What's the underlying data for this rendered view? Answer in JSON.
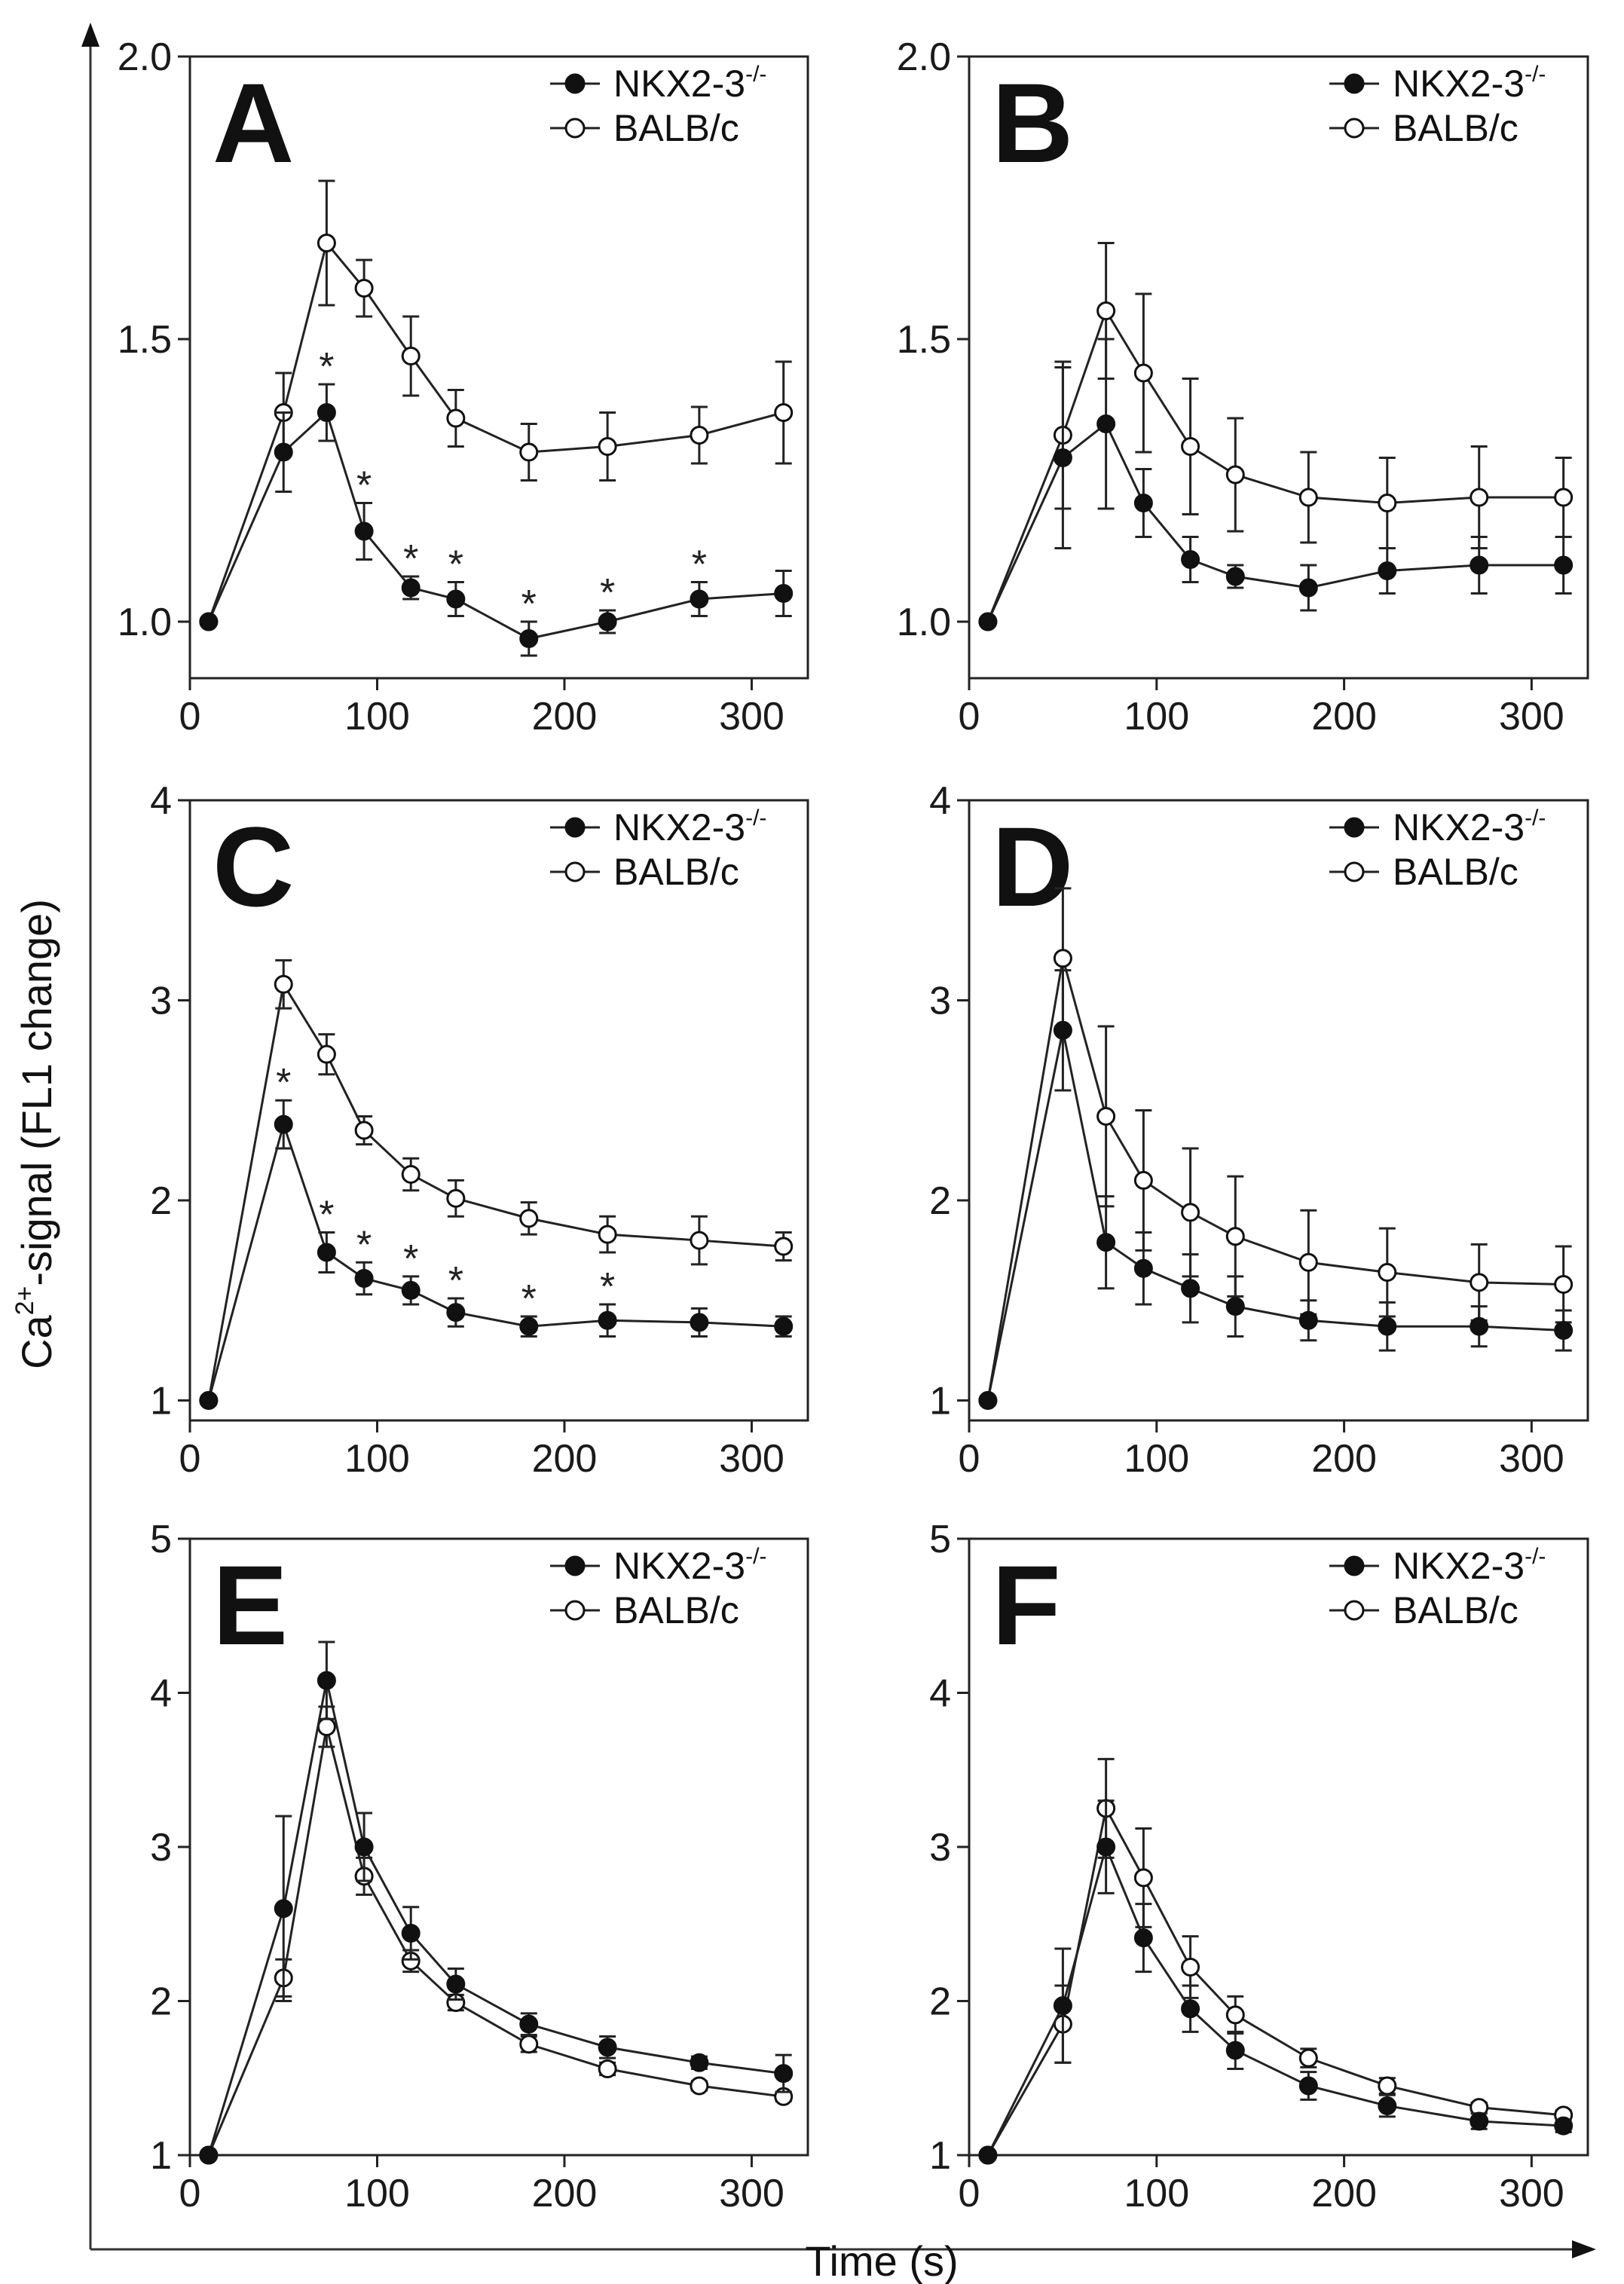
{
  "figure": {
    "ylabel_main": "Ca",
    "ylabel_sup": "2+",
    "ylabel_rest": "-signal (FL1 change)",
    "xlabel": "Time (s)"
  },
  "legend": {
    "series1_main": "NKX2-3",
    "series1_sup": "-/-",
    "series2": "BALB/c"
  },
  "chart_data": [
    {
      "type": "line",
      "panel": "A",
      "x": [
        10,
        50,
        73,
        93,
        118,
        142,
        181,
        223,
        272,
        317
      ],
      "xlim": [
        0,
        330
      ],
      "xticks": [
        0,
        100,
        200,
        300
      ],
      "ylim": [
        0.9,
        2.0
      ],
      "yticks": [
        1.0,
        1.5,
        2.0
      ],
      "ytick_labels": [
        "1.0",
        "1.5",
        "2.0"
      ],
      "series": [
        {
          "name": "NKX2-3-/-",
          "marker": "filled",
          "values": [
            1.0,
            1.3,
            1.37,
            1.16,
            1.06,
            1.04,
            0.97,
            1.0,
            1.04,
            1.05
          ],
          "errors": [
            0,
            0.07,
            0.05,
            0.05,
            0.02,
            0.03,
            0.03,
            0.02,
            0.03,
            0.04
          ]
        },
        {
          "name": "BALB/c",
          "marker": "open",
          "values": [
            1.0,
            1.37,
            1.67,
            1.59,
            1.47,
            1.36,
            1.3,
            1.31,
            1.33,
            1.37
          ],
          "errors": [
            0,
            0.07,
            0.11,
            0.05,
            0.07,
            0.05,
            0.05,
            0.06,
            0.05,
            0.09
          ]
        }
      ],
      "significance_marker": "*",
      "significant_indices": [
        2,
        3,
        4,
        5,
        6,
        7,
        8
      ]
    },
    {
      "type": "line",
      "panel": "B",
      "x": [
        10,
        50,
        73,
        93,
        118,
        142,
        181,
        223,
        272,
        317
      ],
      "xlim": [
        0,
        330
      ],
      "xticks": [
        0,
        100,
        200,
        300
      ],
      "ylim": [
        0.9,
        2.0
      ],
      "yticks": [
        1.0,
        1.5,
        2.0
      ],
      "ytick_labels": [
        "1.0",
        "1.5",
        "2.0"
      ],
      "series": [
        {
          "name": "NKX2-3-/-",
          "marker": "filled",
          "values": [
            1.0,
            1.29,
            1.35,
            1.21,
            1.11,
            1.08,
            1.06,
            1.09,
            1.1,
            1.1
          ],
          "errors": [
            0,
            0.16,
            0.15,
            0.06,
            0.04,
            0.02,
            0.04,
            0.04,
            0.05,
            0.05
          ]
        },
        {
          "name": "BALB/c",
          "marker": "open",
          "values": [
            1.0,
            1.33,
            1.55,
            1.44,
            1.31,
            1.26,
            1.22,
            1.21,
            1.22,
            1.22
          ],
          "errors": [
            0,
            0.13,
            0.12,
            0.14,
            0.12,
            0.1,
            0.08,
            0.08,
            0.09,
            0.07
          ]
        }
      ],
      "significance_marker": "*",
      "significant_indices": []
    },
    {
      "type": "line",
      "panel": "C",
      "x": [
        10,
        50,
        73,
        93,
        118,
        142,
        181,
        223,
        272,
        317
      ],
      "xlim": [
        0,
        330
      ],
      "xticks": [
        0,
        100,
        200,
        300
      ],
      "ylim": [
        0.9,
        4.0
      ],
      "yticks": [
        1,
        2,
        3,
        4
      ],
      "ytick_labels": [
        "1",
        "2",
        "3",
        "4"
      ],
      "series": [
        {
          "name": "NKX2-3-/-",
          "marker": "filled",
          "values": [
            1.0,
            2.38,
            1.74,
            1.61,
            1.55,
            1.44,
            1.37,
            1.4,
            1.39,
            1.37
          ],
          "errors": [
            0,
            0.12,
            0.1,
            0.08,
            0.07,
            0.07,
            0.05,
            0.08,
            0.07,
            0.05
          ]
        },
        {
          "name": "BALB/c",
          "marker": "open",
          "values": [
            1.0,
            3.08,
            2.73,
            2.35,
            2.13,
            2.01,
            1.91,
            1.83,
            1.8,
            1.77
          ],
          "errors": [
            0,
            0.12,
            0.1,
            0.07,
            0.08,
            0.09,
            0.08,
            0.09,
            0.12,
            0.07
          ]
        }
      ],
      "significance_marker": "*",
      "significant_indices": [
        1,
        2,
        3,
        4,
        5,
        6,
        7
      ]
    },
    {
      "type": "line",
      "panel": "D",
      "x": [
        10,
        50,
        73,
        93,
        118,
        142,
        181,
        223,
        272,
        317
      ],
      "xlim": [
        0,
        330
      ],
      "xticks": [
        0,
        100,
        200,
        300
      ],
      "ylim": [
        0.9,
        4.0
      ],
      "yticks": [
        1,
        2,
        3,
        4
      ],
      "ytick_labels": [
        "1",
        "2",
        "3",
        "4"
      ],
      "series": [
        {
          "name": "NKX2-3-/-",
          "marker": "filled",
          "values": [
            1.0,
            2.85,
            1.79,
            1.66,
            1.56,
            1.47,
            1.4,
            1.37,
            1.37,
            1.35
          ],
          "errors": [
            0,
            0.3,
            0.23,
            0.18,
            0.17,
            0.15,
            0.1,
            0.12,
            0.1,
            0.1
          ]
        },
        {
          "name": "BALB/c",
          "marker": "open",
          "values": [
            1.0,
            3.21,
            2.42,
            2.1,
            1.94,
            1.82,
            1.69,
            1.64,
            1.59,
            1.58
          ],
          "errors": [
            0,
            0.35,
            0.45,
            0.35,
            0.32,
            0.3,
            0.26,
            0.22,
            0.19,
            0.19
          ]
        }
      ],
      "significance_marker": "*",
      "significant_indices": []
    },
    {
      "type": "line",
      "panel": "E",
      "x": [
        10,
        50,
        73,
        93,
        118,
        142,
        181,
        223,
        272,
        317
      ],
      "xlim": [
        0,
        330
      ],
      "xticks": [
        0,
        100,
        200,
        300
      ],
      "ylim": [
        1.0,
        5.0
      ],
      "yticks": [
        1,
        2,
        3,
        4,
        5
      ],
      "ytick_labels": [
        "1",
        "2",
        "3",
        "4",
        "5"
      ],
      "series": [
        {
          "name": "NKX2-3-/-",
          "marker": "filled",
          "values": [
            1.0,
            2.6,
            4.08,
            3.0,
            2.44,
            2.11,
            1.85,
            1.7,
            1.6,
            1.53
          ],
          "errors": [
            0,
            0.6,
            0.25,
            0.22,
            0.17,
            0.1,
            0.07,
            0.07,
            0.04,
            0.12
          ]
        },
        {
          "name": "BALB/c",
          "marker": "open",
          "values": [
            1.0,
            2.15,
            3.78,
            2.81,
            2.26,
            1.99,
            1.72,
            1.56,
            1.45,
            1.38
          ],
          "errors": [
            0,
            0.12,
            0.13,
            0.12,
            0.07,
            0.05,
            0.05,
            0.04,
            0.03,
            0.03
          ]
        }
      ],
      "significance_marker": "*",
      "significant_indices": []
    },
    {
      "type": "line",
      "panel": "F",
      "x": [
        10,
        50,
        73,
        93,
        118,
        142,
        181,
        223,
        272,
        317
      ],
      "xlim": [
        0,
        330
      ],
      "xticks": [
        0,
        100,
        200,
        300
      ],
      "ylim": [
        1.0,
        5.0
      ],
      "yticks": [
        1,
        2,
        3,
        4,
        5
      ],
      "ytick_labels": [
        "1",
        "2",
        "3",
        "4",
        "5"
      ],
      "series": [
        {
          "name": "NKX2-3-/-",
          "marker": "filled",
          "values": [
            1.0,
            1.97,
            3.0,
            2.41,
            1.95,
            1.68,
            1.45,
            1.32,
            1.22,
            1.19
          ],
          "errors": [
            0,
            0.37,
            0.3,
            0.22,
            0.15,
            0.12,
            0.09,
            0.07,
            0.05,
            0.04
          ]
        },
        {
          "name": "BALB/c",
          "marker": "open",
          "values": [
            1.0,
            1.85,
            3.25,
            2.8,
            2.22,
            1.91,
            1.63,
            1.45,
            1.31,
            1.26
          ],
          "errors": [
            0,
            0.25,
            0.32,
            0.32,
            0.2,
            0.12,
            0.06,
            0.05,
            0.03,
            0.03
          ]
        }
      ],
      "significance_marker": "*",
      "significant_indices": []
    }
  ]
}
